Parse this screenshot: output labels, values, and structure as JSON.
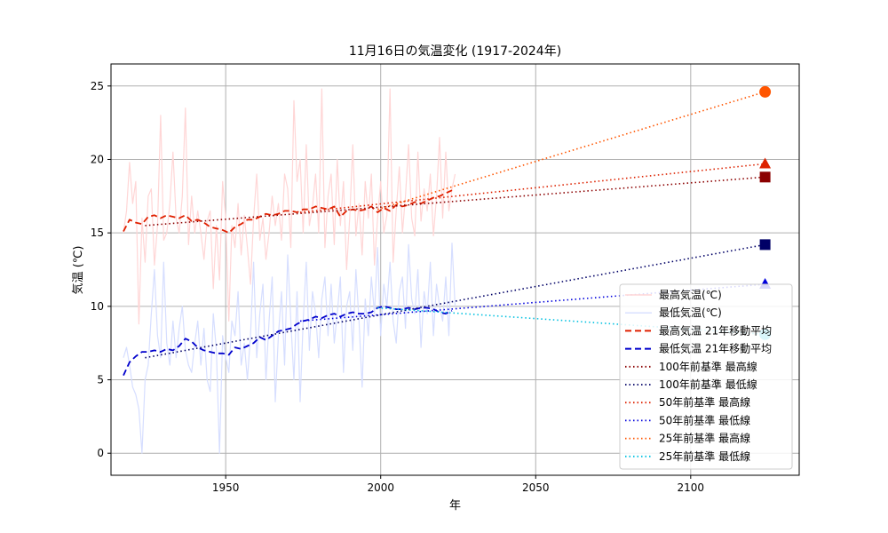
{
  "chart_data": {
    "type": "line",
    "title": "11月16日の気温変化 (1917-2024年)",
    "xlabel": "年",
    "ylabel": "気温 (℃)",
    "xlim": [
      1913,
      2135
    ],
    "ylim": [
      -1.5,
      26.5
    ],
    "xticks": [
      1950,
      2000,
      2050,
      2100
    ],
    "yticks": [
      0,
      5,
      10,
      15,
      20,
      25
    ],
    "grid": true,
    "legend_position": "lower-right",
    "colors": {
      "max_raw": "#ffd6d6",
      "min_raw": "#d6deff",
      "max_ma": "#e02000",
      "min_ma": "#0000cc",
      "max_100": "#8b0000",
      "min_100": "#000066",
      "max_50": "#dd2200",
      "min_50": "#0000dd",
      "max_25": "#ff5500",
      "min_25": "#00c0e0"
    },
    "series": [
      {
        "name": "最高気温(℃)",
        "style": "raw-max",
        "x": [
          1917,
          1918,
          1919,
          1920,
          1921,
          1922,
          1923,
          1924,
          1925,
          1926,
          1927,
          1928,
          1929,
          1930,
          1931,
          1932,
          1933,
          1934,
          1935,
          1936,
          1937,
          1938,
          1939,
          1940,
          1941,
          1942,
          1943,
          1944,
          1945,
          1946,
          1947,
          1948,
          1949,
          1950,
          1951,
          1952,
          1953,
          1954,
          1955,
          1956,
          1957,
          1958,
          1959,
          1960,
          1961,
          1962,
          1963,
          1964,
          1965,
          1966,
          1967,
          1968,
          1969,
          1970,
          1971,
          1972,
          1973,
          1974,
          1975,
          1976,
          1977,
          1978,
          1979,
          1980,
          1981,
          1982,
          1983,
          1984,
          1985,
          1986,
          1987,
          1988,
          1989,
          1990,
          1991,
          1992,
          1993,
          1994,
          1995,
          1996,
          1997,
          1998,
          1999,
          2000,
          2001,
          2002,
          2003,
          2004,
          2005,
          2006,
          2007,
          2008,
          2009,
          2010,
          2011,
          2012,
          2013,
          2014,
          2015,
          2016,
          2017,
          2018,
          2019,
          2020,
          2021,
          2022,
          2023,
          2024
        ],
        "values": [
          15.0,
          16.5,
          19.8,
          17.0,
          18.5,
          8.8,
          16.0,
          13.0,
          17.5,
          18.0,
          12.8,
          15.5,
          23.0,
          14.5,
          15.0,
          17.0,
          20.5,
          16.0,
          15.0,
          17.5,
          23.5,
          14.2,
          17.5,
          15.0,
          16.5,
          15.0,
          13.2,
          15.8,
          16.5,
          11.2,
          15.5,
          11.8,
          18.5,
          16.0,
          9.0,
          15.5,
          14.0,
          17.0,
          13.5,
          16.2,
          14.0,
          11.5,
          16.0,
          19.0,
          14.5,
          16.0,
          13.2,
          15.0,
          17.5,
          15.5,
          17.0,
          14.5,
          19.0,
          18.0,
          14.0,
          24.0,
          18.5,
          20.0,
          15.0,
          21.0,
          15.5,
          16.8,
          19.0,
          15.0,
          24.8,
          14.0,
          17.5,
          19.0,
          14.2,
          20.0,
          15.5,
          18.5,
          12.5,
          16.0,
          21.0,
          14.8,
          17.0,
          13.5,
          18.5,
          16.0,
          19.0,
          12.8,
          16.0,
          18.5,
          15.0,
          16.2,
          24.8,
          13.0,
          16.5,
          19.5,
          15.0,
          17.5,
          21.0,
          16.0,
          14.8,
          20.5,
          15.8,
          18.0,
          16.5,
          19.0,
          14.8,
          17.5,
          21.5,
          16.0,
          20.5,
          16.5,
          18.0,
          19.0
        ]
      },
      {
        "name": "最低気温(℃)",
        "style": "raw-min",
        "x": [
          1917,
          1918,
          1919,
          1920,
          1921,
          1922,
          1923,
          1924,
          1925,
          1926,
          1927,
          1928,
          1929,
          1930,
          1931,
          1932,
          1933,
          1934,
          1935,
          1936,
          1937,
          1938,
          1939,
          1940,
          1941,
          1942,
          1943,
          1944,
          1945,
          1946,
          1947,
          1948,
          1949,
          1950,
          1951,
          1952,
          1953,
          1954,
          1955,
          1956,
          1957,
          1958,
          1959,
          1960,
          1961,
          1962,
          1963,
          1964,
          1965,
          1966,
          1967,
          1968,
          1969,
          1970,
          1971,
          1972,
          1973,
          1974,
          1975,
          1976,
          1977,
          1978,
          1979,
          1980,
          1981,
          1982,
          1983,
          1984,
          1985,
          1986,
          1987,
          1988,
          1989,
          1990,
          1991,
          1992,
          1993,
          1994,
          1995,
          1996,
          1997,
          1998,
          1999,
          2000,
          2001,
          2002,
          2003,
          2004,
          2005,
          2006,
          2007,
          2008,
          2009,
          2010,
          2011,
          2012,
          2013,
          2014,
          2015,
          2016,
          2017,
          2018,
          2019,
          2020,
          2021,
          2022,
          2023,
          2024
        ],
        "values": [
          6.5,
          7.2,
          6.0,
          4.5,
          4.0,
          3.0,
          0.0,
          5.0,
          6.0,
          9.5,
          12.5,
          8.0,
          6.5,
          13.0,
          7.5,
          6.0,
          9.0,
          6.5,
          8.5,
          10.0,
          7.0,
          6.0,
          5.5,
          7.5,
          9.0,
          6.0,
          8.5,
          5.0,
          4.2,
          9.5,
          7.0,
          0.0,
          8.0,
          6.5,
          5.5,
          9.0,
          8.0,
          11.0,
          6.0,
          7.5,
          5.0,
          8.0,
          13.0,
          6.5,
          9.5,
          11.5,
          5.0,
          9.0,
          12.0,
          3.5,
          8.0,
          11.0,
          6.0,
          13.5,
          9.0,
          5.0,
          11.0,
          3.5,
          9.0,
          13.0,
          7.0,
          11.0,
          9.5,
          6.5,
          10.5,
          12.0,
          8.0,
          11.5,
          7.5,
          9.5,
          12.0,
          5.5,
          10.0,
          11.0,
          7.0,
          12.5,
          9.0,
          4.5,
          10.5,
          8.0,
          12.0,
          9.5,
          14.0,
          8.0,
          11.5,
          10.0,
          13.0,
          9.0,
          7.5,
          11.0,
          12.0,
          8.5,
          14.2,
          10.5,
          9.5,
          12.5,
          7.2,
          11.0,
          9.5,
          13.0,
          8.0,
          11.5,
          10.0,
          9.0,
          12.0,
          8.0,
          14.3,
          10.0
        ]
      },
      {
        "name": "最高気温 21年移動平均",
        "style": "ma-max",
        "x": [
          1917,
          1919,
          1921,
          1923,
          1925,
          1927,
          1929,
          1931,
          1933,
          1935,
          1937,
          1939,
          1941,
          1943,
          1945,
          1947,
          1949,
          1951,
          1953,
          1955,
          1957,
          1959,
          1961,
          1963,
          1965,
          1967,
          1969,
          1971,
          1973,
          1975,
          1977,
          1979,
          1981,
          1983,
          1985,
          1987,
          1989,
          1991,
          1993,
          1995,
          1997,
          1999,
          2001,
          2003,
          2005,
          2007,
          2009,
          2011,
          2013,
          2015,
          2017,
          2019,
          2021,
          2023
        ],
        "values": [
          15.1,
          15.9,
          15.7,
          15.6,
          16.1,
          16.2,
          16.0,
          16.2,
          16.1,
          16.0,
          16.2,
          15.8,
          15.9,
          15.7,
          15.4,
          15.3,
          15.2,
          15.0,
          15.4,
          15.6,
          15.9,
          15.9,
          16.1,
          16.3,
          16.2,
          16.3,
          16.5,
          16.5,
          16.4,
          16.6,
          16.6,
          16.8,
          16.7,
          16.6,
          16.8,
          16.1,
          16.5,
          16.6,
          16.5,
          16.6,
          16.8,
          16.4,
          16.7,
          16.5,
          16.9,
          16.8,
          16.9,
          17.1,
          17.0,
          17.2,
          17.4,
          17.5,
          17.7,
          17.9
        ]
      },
      {
        "name": "最低気温 21年移動平均",
        "style": "ma-min",
        "x": [
          1917,
          1919,
          1921,
          1923,
          1925,
          1927,
          1929,
          1931,
          1933,
          1935,
          1937,
          1939,
          1941,
          1943,
          1945,
          1947,
          1949,
          1951,
          1953,
          1955,
          1957,
          1959,
          1961,
          1963,
          1965,
          1967,
          1969,
          1971,
          1973,
          1975,
          1977,
          1979,
          1981,
          1983,
          1985,
          1987,
          1989,
          1991,
          1993,
          1995,
          1997,
          1999,
          2001,
          2003,
          2005,
          2007,
          2009,
          2011,
          2013,
          2015,
          2017,
          2019,
          2021,
          2023
        ],
        "values": [
          5.3,
          6.2,
          6.6,
          6.9,
          6.9,
          7.0,
          6.9,
          7.1,
          7.0,
          7.3,
          7.8,
          7.6,
          7.2,
          7.0,
          6.9,
          6.8,
          6.8,
          6.7,
          7.2,
          7.1,
          7.3,
          7.5,
          7.9,
          7.7,
          8.0,
          8.3,
          8.4,
          8.5,
          8.8,
          9.0,
          9.1,
          9.3,
          9.2,
          9.4,
          9.5,
          9.3,
          9.5,
          9.6,
          9.5,
          9.5,
          9.6,
          9.9,
          10.0,
          9.9,
          9.8,
          9.8,
          9.9,
          9.8,
          9.9,
          9.9,
          9.8,
          9.6,
          9.5,
          9.7
        ]
      },
      {
        "name": "100年前基準 最高線",
        "style": "trend-max-100",
        "x": [
          1924,
          2124
        ],
        "values": [
          15.5,
          18.8
        ],
        "marker": "square",
        "marker_value": 18.8
      },
      {
        "name": "100年前基準 最低線",
        "style": "trend-min-100",
        "x": [
          1924,
          2124
        ],
        "values": [
          6.5,
          14.2
        ],
        "marker": "square",
        "marker_value": 14.2
      },
      {
        "name": "50年前基準 最高線",
        "style": "trend-max-50",
        "x": [
          1974,
          2124
        ],
        "values": [
          16.4,
          19.7
        ],
        "marker": "triangle",
        "marker_value": 19.7
      },
      {
        "name": "50年前基準 最低線",
        "style": "trend-min-50",
        "x": [
          1974,
          2124
        ],
        "values": [
          9.0,
          11.5
        ],
        "marker": "triangle",
        "marker_value": 11.5
      },
      {
        "name": "25年前基準 最高線",
        "style": "trend-max-25",
        "x": [
          1999,
          2124
        ],
        "values": [
          16.6,
          24.6
        ],
        "marker": "circle",
        "marker_value": 24.6
      },
      {
        "name": "25年前基準 最低線",
        "style": "trend-min-25",
        "x": [
          1999,
          2124
        ],
        "values": [
          9.9,
          8.1
        ],
        "marker": "circle",
        "marker_value": 8.1
      }
    ]
  }
}
